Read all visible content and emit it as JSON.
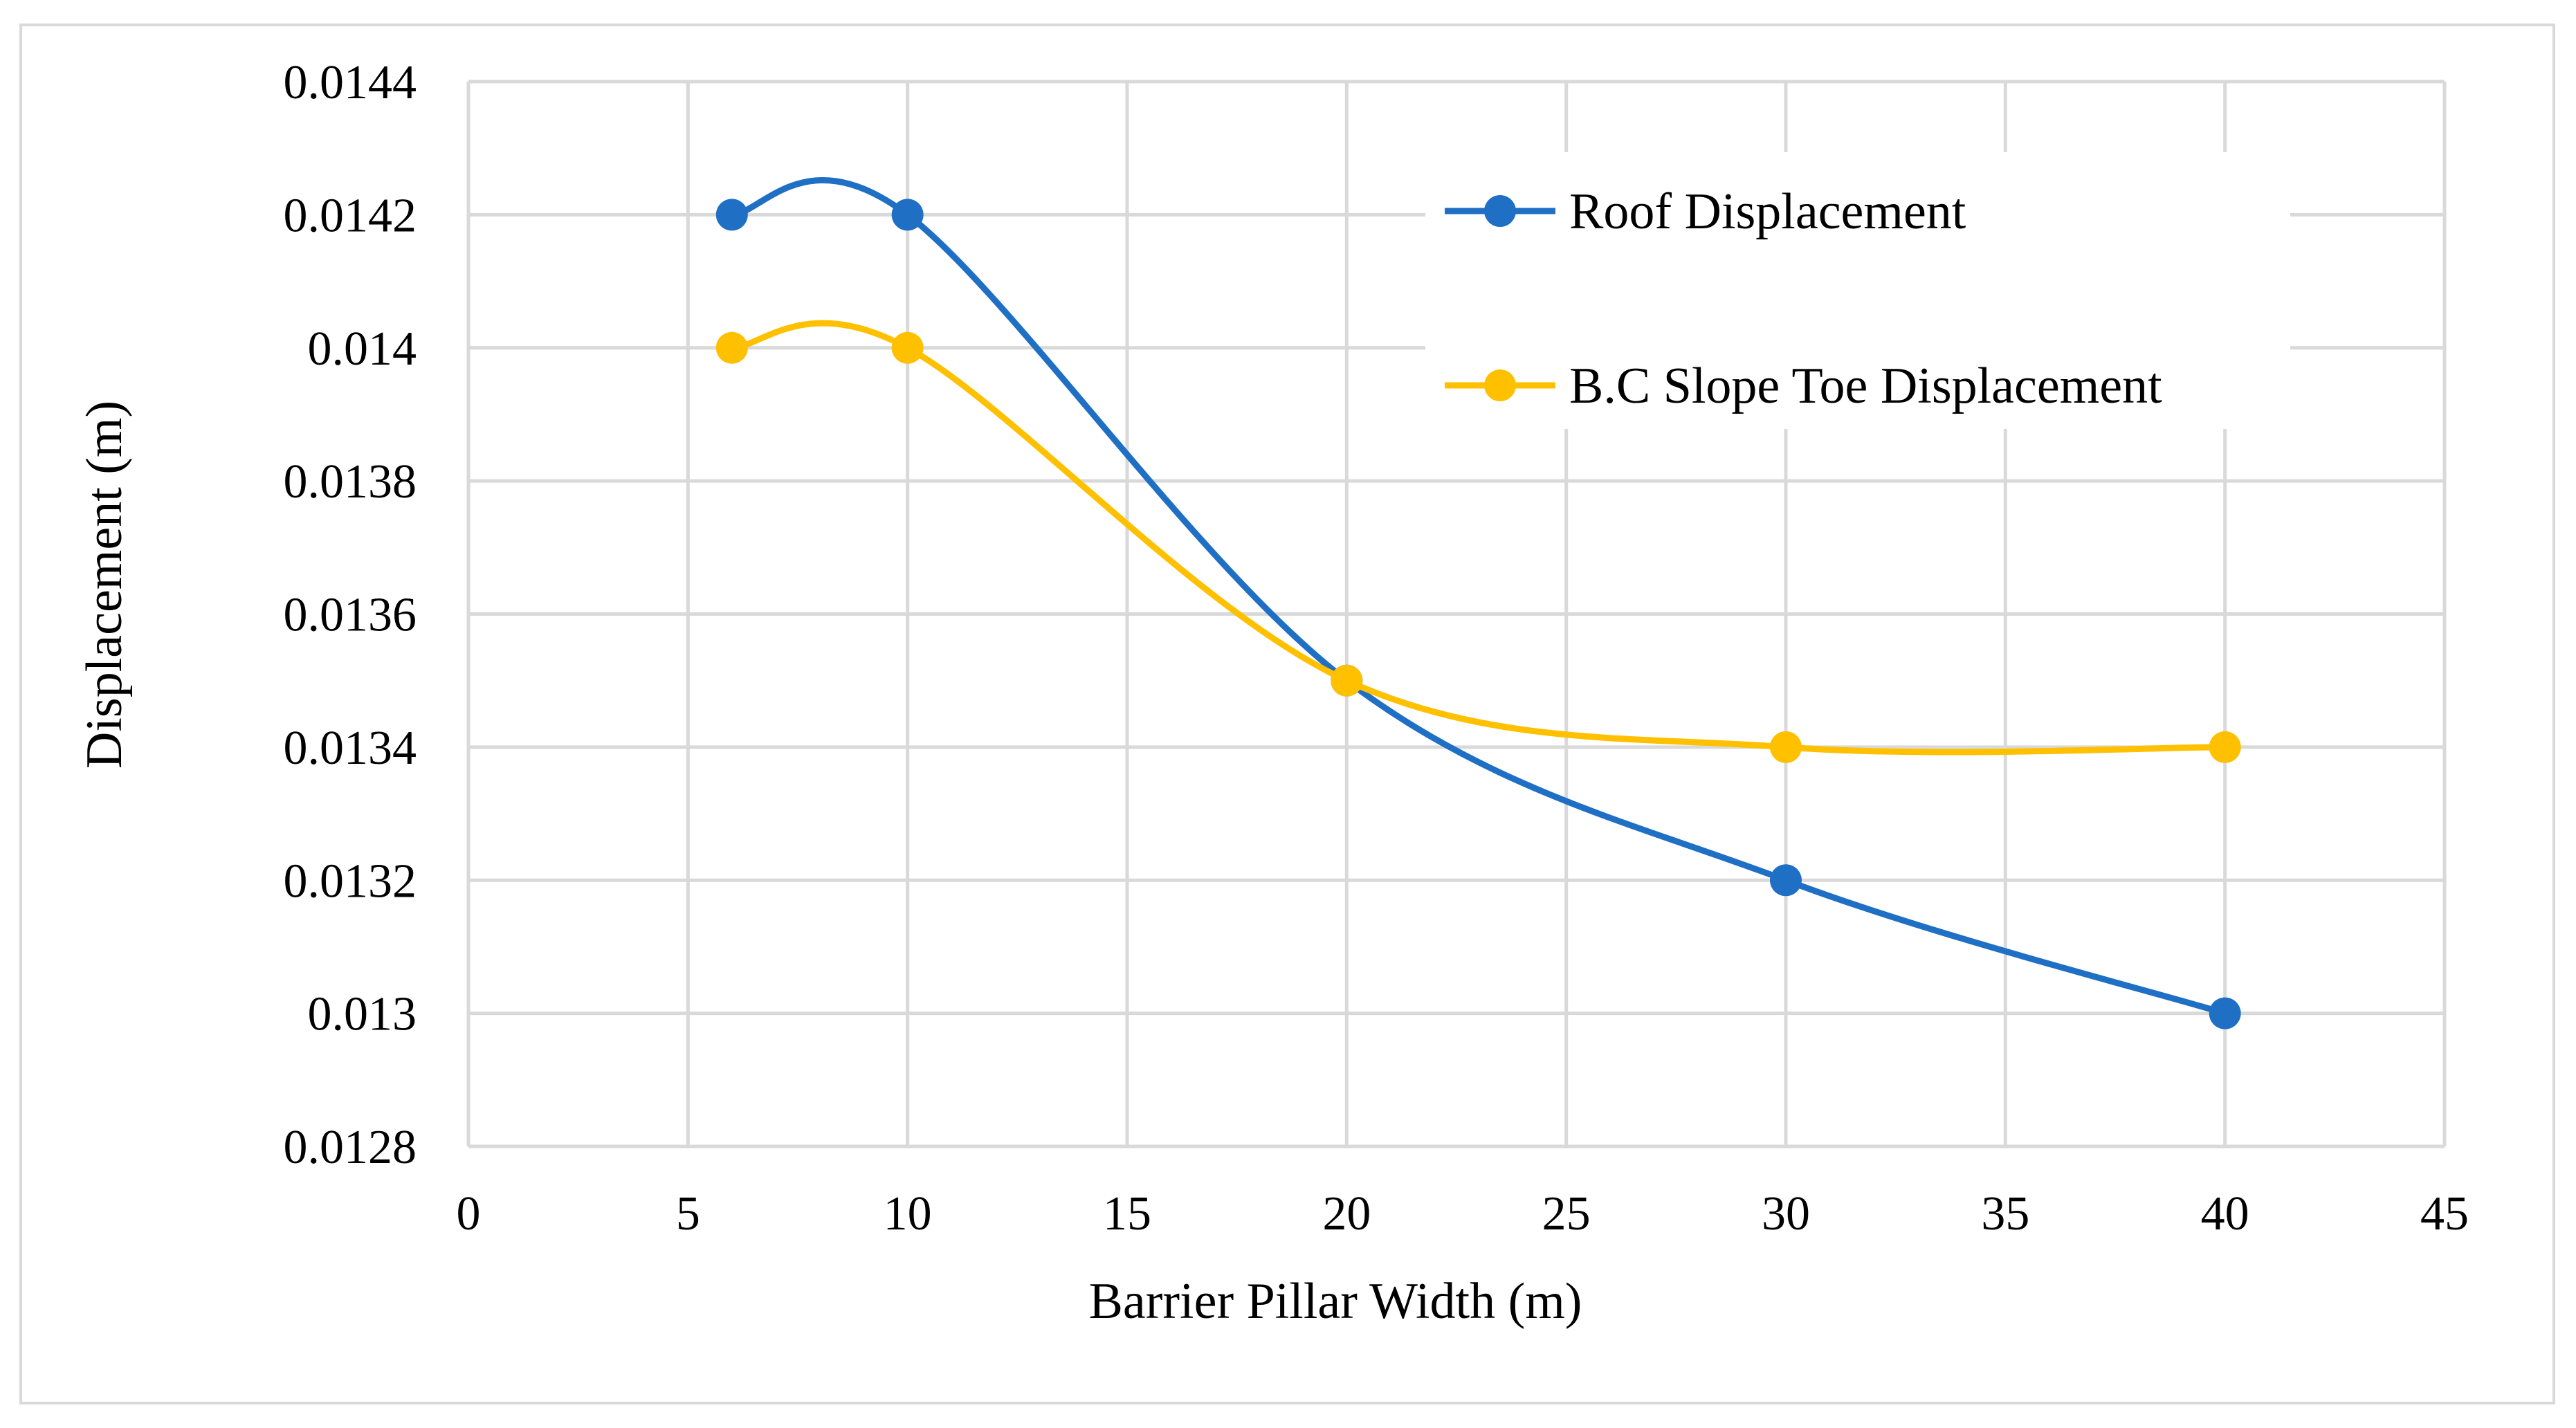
{
  "chart_data": {
    "type": "line",
    "title": "",
    "xlabel": "Barrier Pillar Width (m)",
    "ylabel": "Displacement (m)",
    "xlim": [
      0,
      45
    ],
    "ylim": [
      0.0128,
      0.0144
    ],
    "x_ticks": [
      0,
      5,
      10,
      15,
      20,
      25,
      30,
      35,
      40,
      45
    ],
    "x_tick_labels": [
      "0",
      "5",
      "10",
      "15",
      "20",
      "25",
      "30",
      "35",
      "40",
      "45"
    ],
    "y_ticks": [
      0.0128,
      0.013,
      0.0132,
      0.0134,
      0.0136,
      0.0138,
      0.014,
      0.0142,
      0.0144
    ],
    "y_tick_labels": [
      "0.0128",
      "0.013",
      "0.0132",
      "0.0134",
      "0.0136",
      "0.0138",
      "0.014",
      "0.0142",
      "0.0144"
    ],
    "grid": true,
    "smooth": true,
    "legend_position": "top-right",
    "series": [
      {
        "name": "Roof Displacement",
        "color": "#1f6fc5",
        "x": [
          6,
          10,
          20,
          30,
          40
        ],
        "y": [
          0.0142,
          0.0142,
          0.0135,
          0.0132,
          0.013
        ]
      },
      {
        "name": "B.C Slope Toe Displacement",
        "color": "#ffc000",
        "x": [
          6,
          10,
          20,
          30,
          40
        ],
        "y": [
          0.014,
          0.014,
          0.0135,
          0.0134,
          0.0134
        ]
      }
    ]
  }
}
